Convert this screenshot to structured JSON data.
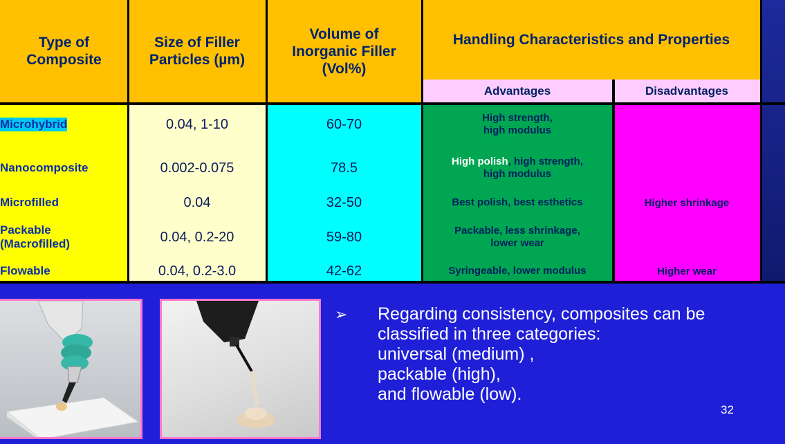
{
  "table": {
    "headers": {
      "type": "Type of\nComposite",
      "size": "Size of Filler\nParticles (µm)",
      "volume": "Volume of\nInorganic Filler\n(Vol%)",
      "handling": "Handling Characteristics and Properties",
      "advantages": "Advantages",
      "disadvantages": "Disadvantages"
    },
    "rows": [
      {
        "type": "Microhybrid",
        "size": "0.04, 1-10",
        "volume": "60-70",
        "adv": "High strength,\nhigh modulus",
        "dis": ""
      },
      {
        "type": "Nanocomposite",
        "size": "0.002-0.075",
        "volume": "78.5",
        "adv_highlight": "High polish",
        "adv_rest": ", high strength,",
        "adv_line2": "high modulus",
        "dis": ""
      },
      {
        "type": "Microfilled",
        "size": "0.04",
        "volume": "32-50",
        "adv": "Best polish, best esthetics",
        "dis": "Higher shrinkage"
      },
      {
        "type": "Packable\n(Macrofilled)",
        "size": "0.04, 0.2-20",
        "volume": "59-80",
        "adv": "Packable, less shrinkage,\nlower wear",
        "dis": ""
      },
      {
        "type": "Flowable",
        "size": "0.04, 0.2-3.0",
        "volume": "42-62",
        "adv": "Syringeable, lower modulus",
        "dis": "Higher wear"
      }
    ]
  },
  "bullet": {
    "lines": [
      "Regarding consistency, composites can be",
      "classified in three categories:",
      "universal (medium) ,",
      "packable (high),",
      "and flowable (low)."
    ]
  },
  "images": [
    {
      "name": "packable-composite-photo",
      "icon": "composite-syringe-on-pad-image"
    },
    {
      "name": "flowable-composite-photo",
      "icon": "flowable-syringe-image"
    }
  ],
  "page_number": "32",
  "colors": {
    "background": "#1f1fd8",
    "header": "#ffc000",
    "subheader": "#ffccff",
    "type_col": "#ffff00",
    "size_col": "#ffffcc",
    "volume_col": "#00ffff",
    "advantages_col": "#00a651",
    "disadvantages_col": "#ff00ff"
  }
}
